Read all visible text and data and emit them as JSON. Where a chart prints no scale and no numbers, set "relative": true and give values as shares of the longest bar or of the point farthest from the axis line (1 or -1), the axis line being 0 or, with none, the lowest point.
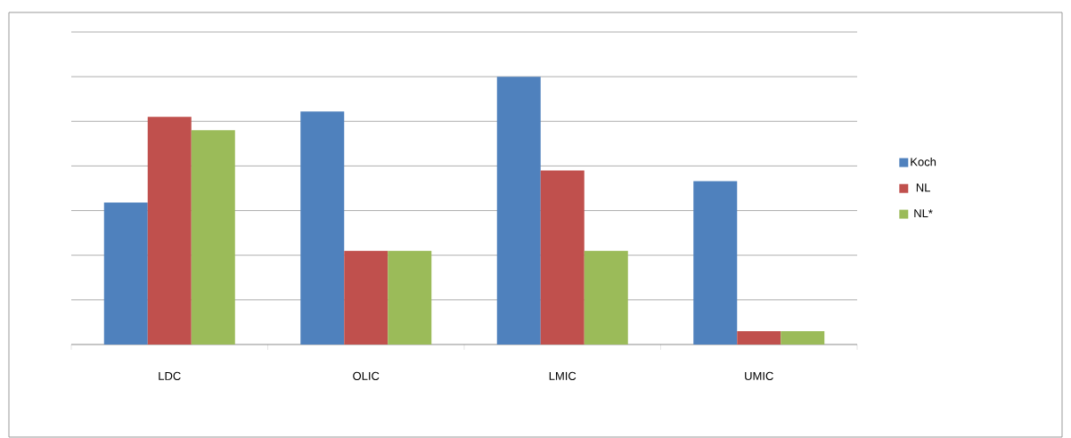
{
  "chart_data": {
    "type": "bar",
    "relative": true,
    "categories": [
      "LDC",
      "OLIC",
      "LMIC",
      "UMIC"
    ],
    "series": [
      {
        "name": "Koch",
        "color": "#4f81bd",
        "values": [
          0.53,
          0.87,
          1,
          0.61
        ]
      },
      {
        "name": "NL",
        "color": "#c0504d",
        "values": [
          0.85,
          0.35,
          0.65,
          0.05
        ]
      },
      {
        "name": "NL*",
        "color": "#9bbb59",
        "values": [
          0.8,
          0.35,
          0.35,
          0.05
        ]
      }
    ],
    "grid": "y",
    "legend": "right"
  }
}
